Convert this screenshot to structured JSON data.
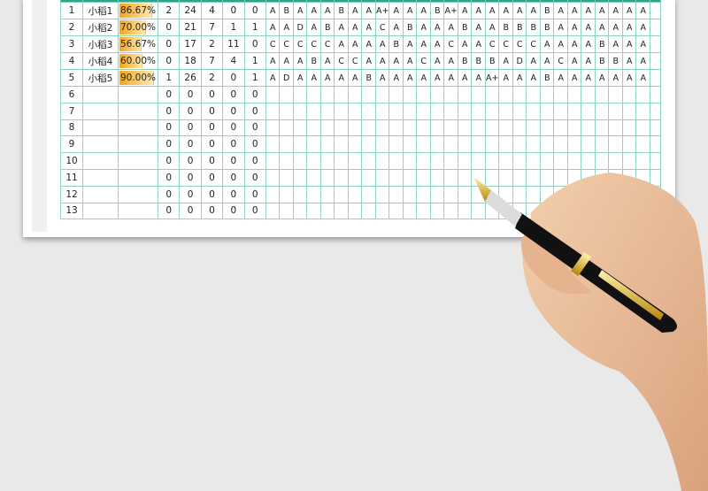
{
  "colors": {
    "header": "#2aa78b",
    "grid": "#8fd3c3",
    "bar": "#f6a516",
    "background": "#e9e9e9"
  },
  "grade_columns": 28,
  "rows": [
    {
      "no": "1",
      "name": "小稻1",
      "pct": "86.67%",
      "pct_value": 86.67,
      "nums": [
        "2",
        "24",
        "4",
        "0",
        "0"
      ],
      "grades": [
        "A",
        "B",
        "A",
        "A",
        "A",
        "B",
        "A",
        "A",
        "A+",
        "A",
        "A",
        "A",
        "B",
        "A+",
        "A",
        "A",
        "A",
        "A",
        "A",
        "A",
        "B",
        "A",
        "A",
        "A",
        "A",
        "A",
        "A",
        "A"
      ]
    },
    {
      "no": "2",
      "name": "小稻2",
      "pct": "70.00%",
      "pct_value": 70,
      "nums": [
        "0",
        "21",
        "7",
        "1",
        "1"
      ],
      "grades": [
        "A",
        "A",
        "D",
        "A",
        "B",
        "A",
        "A",
        "A",
        "C",
        "A",
        "B",
        "A",
        "A",
        "A",
        "B",
        "A",
        "A",
        "B",
        "B",
        "B",
        "B",
        "A",
        "A",
        "A",
        "A",
        "A",
        "A",
        "A"
      ]
    },
    {
      "no": "3",
      "name": "小稻3",
      "pct": "56.67%",
      "pct_value": 56.67,
      "nums": [
        "0",
        "17",
        "2",
        "11",
        "0"
      ],
      "grades": [
        "C",
        "C",
        "C",
        "C",
        "C",
        "A",
        "A",
        "A",
        "A",
        "B",
        "A",
        "A",
        "A",
        "C",
        "A",
        "A",
        "C",
        "C",
        "C",
        "C",
        "A",
        "A",
        "A",
        "A",
        "B",
        "A",
        "A",
        "A"
      ]
    },
    {
      "no": "4",
      "name": "小稻4",
      "pct": "60.00%",
      "pct_value": 60,
      "nums": [
        "0",
        "18",
        "7",
        "4",
        "1"
      ],
      "grades": [
        "A",
        "A",
        "A",
        "B",
        "A",
        "C",
        "C",
        "A",
        "A",
        "A",
        "A",
        "C",
        "A",
        "A",
        "B",
        "B",
        "B",
        "A",
        "D",
        "A",
        "A",
        "C",
        "A",
        "A",
        "B",
        "B",
        "A",
        "A"
      ]
    },
    {
      "no": "5",
      "name": "小稻5",
      "pct": "90.00%",
      "pct_value": 90,
      "nums": [
        "1",
        "26",
        "2",
        "0",
        "1"
      ],
      "grades": [
        "A",
        "D",
        "A",
        "A",
        "A",
        "A",
        "A",
        "B",
        "A",
        "A",
        "A",
        "A",
        "A",
        "A",
        "A",
        "A",
        "A+",
        "A",
        "A",
        "A",
        "B",
        "A",
        "A",
        "A",
        "A",
        "A",
        "A",
        "A"
      ]
    },
    {
      "no": "6",
      "name": "",
      "pct": "",
      "nums": [
        "0",
        "0",
        "0",
        "0",
        "0"
      ],
      "grades": []
    },
    {
      "no": "7",
      "name": "",
      "pct": "",
      "nums": [
        "0",
        "0",
        "0",
        "0",
        "0"
      ],
      "grades": []
    },
    {
      "no": "8",
      "name": "",
      "pct": "",
      "nums": [
        "0",
        "0",
        "0",
        "0",
        "0"
      ],
      "grades": []
    },
    {
      "no": "9",
      "name": "",
      "pct": "",
      "nums": [
        "0",
        "0",
        "0",
        "0",
        "0"
      ],
      "grades": []
    },
    {
      "no": "10",
      "name": "",
      "pct": "",
      "nums": [
        "0",
        "0",
        "0",
        "0",
        "0"
      ],
      "grades": []
    },
    {
      "no": "11",
      "name": "",
      "pct": "",
      "nums": [
        "0",
        "0",
        "0",
        "0",
        "0"
      ],
      "grades": []
    },
    {
      "no": "12",
      "name": "",
      "pct": "",
      "nums": [
        "0",
        "0",
        "0",
        "0",
        "0"
      ],
      "grades": []
    },
    {
      "no": "13",
      "name": "",
      "pct": "",
      "nums": [
        "0",
        "0",
        "0",
        "0",
        "0"
      ],
      "grades": []
    }
  ]
}
